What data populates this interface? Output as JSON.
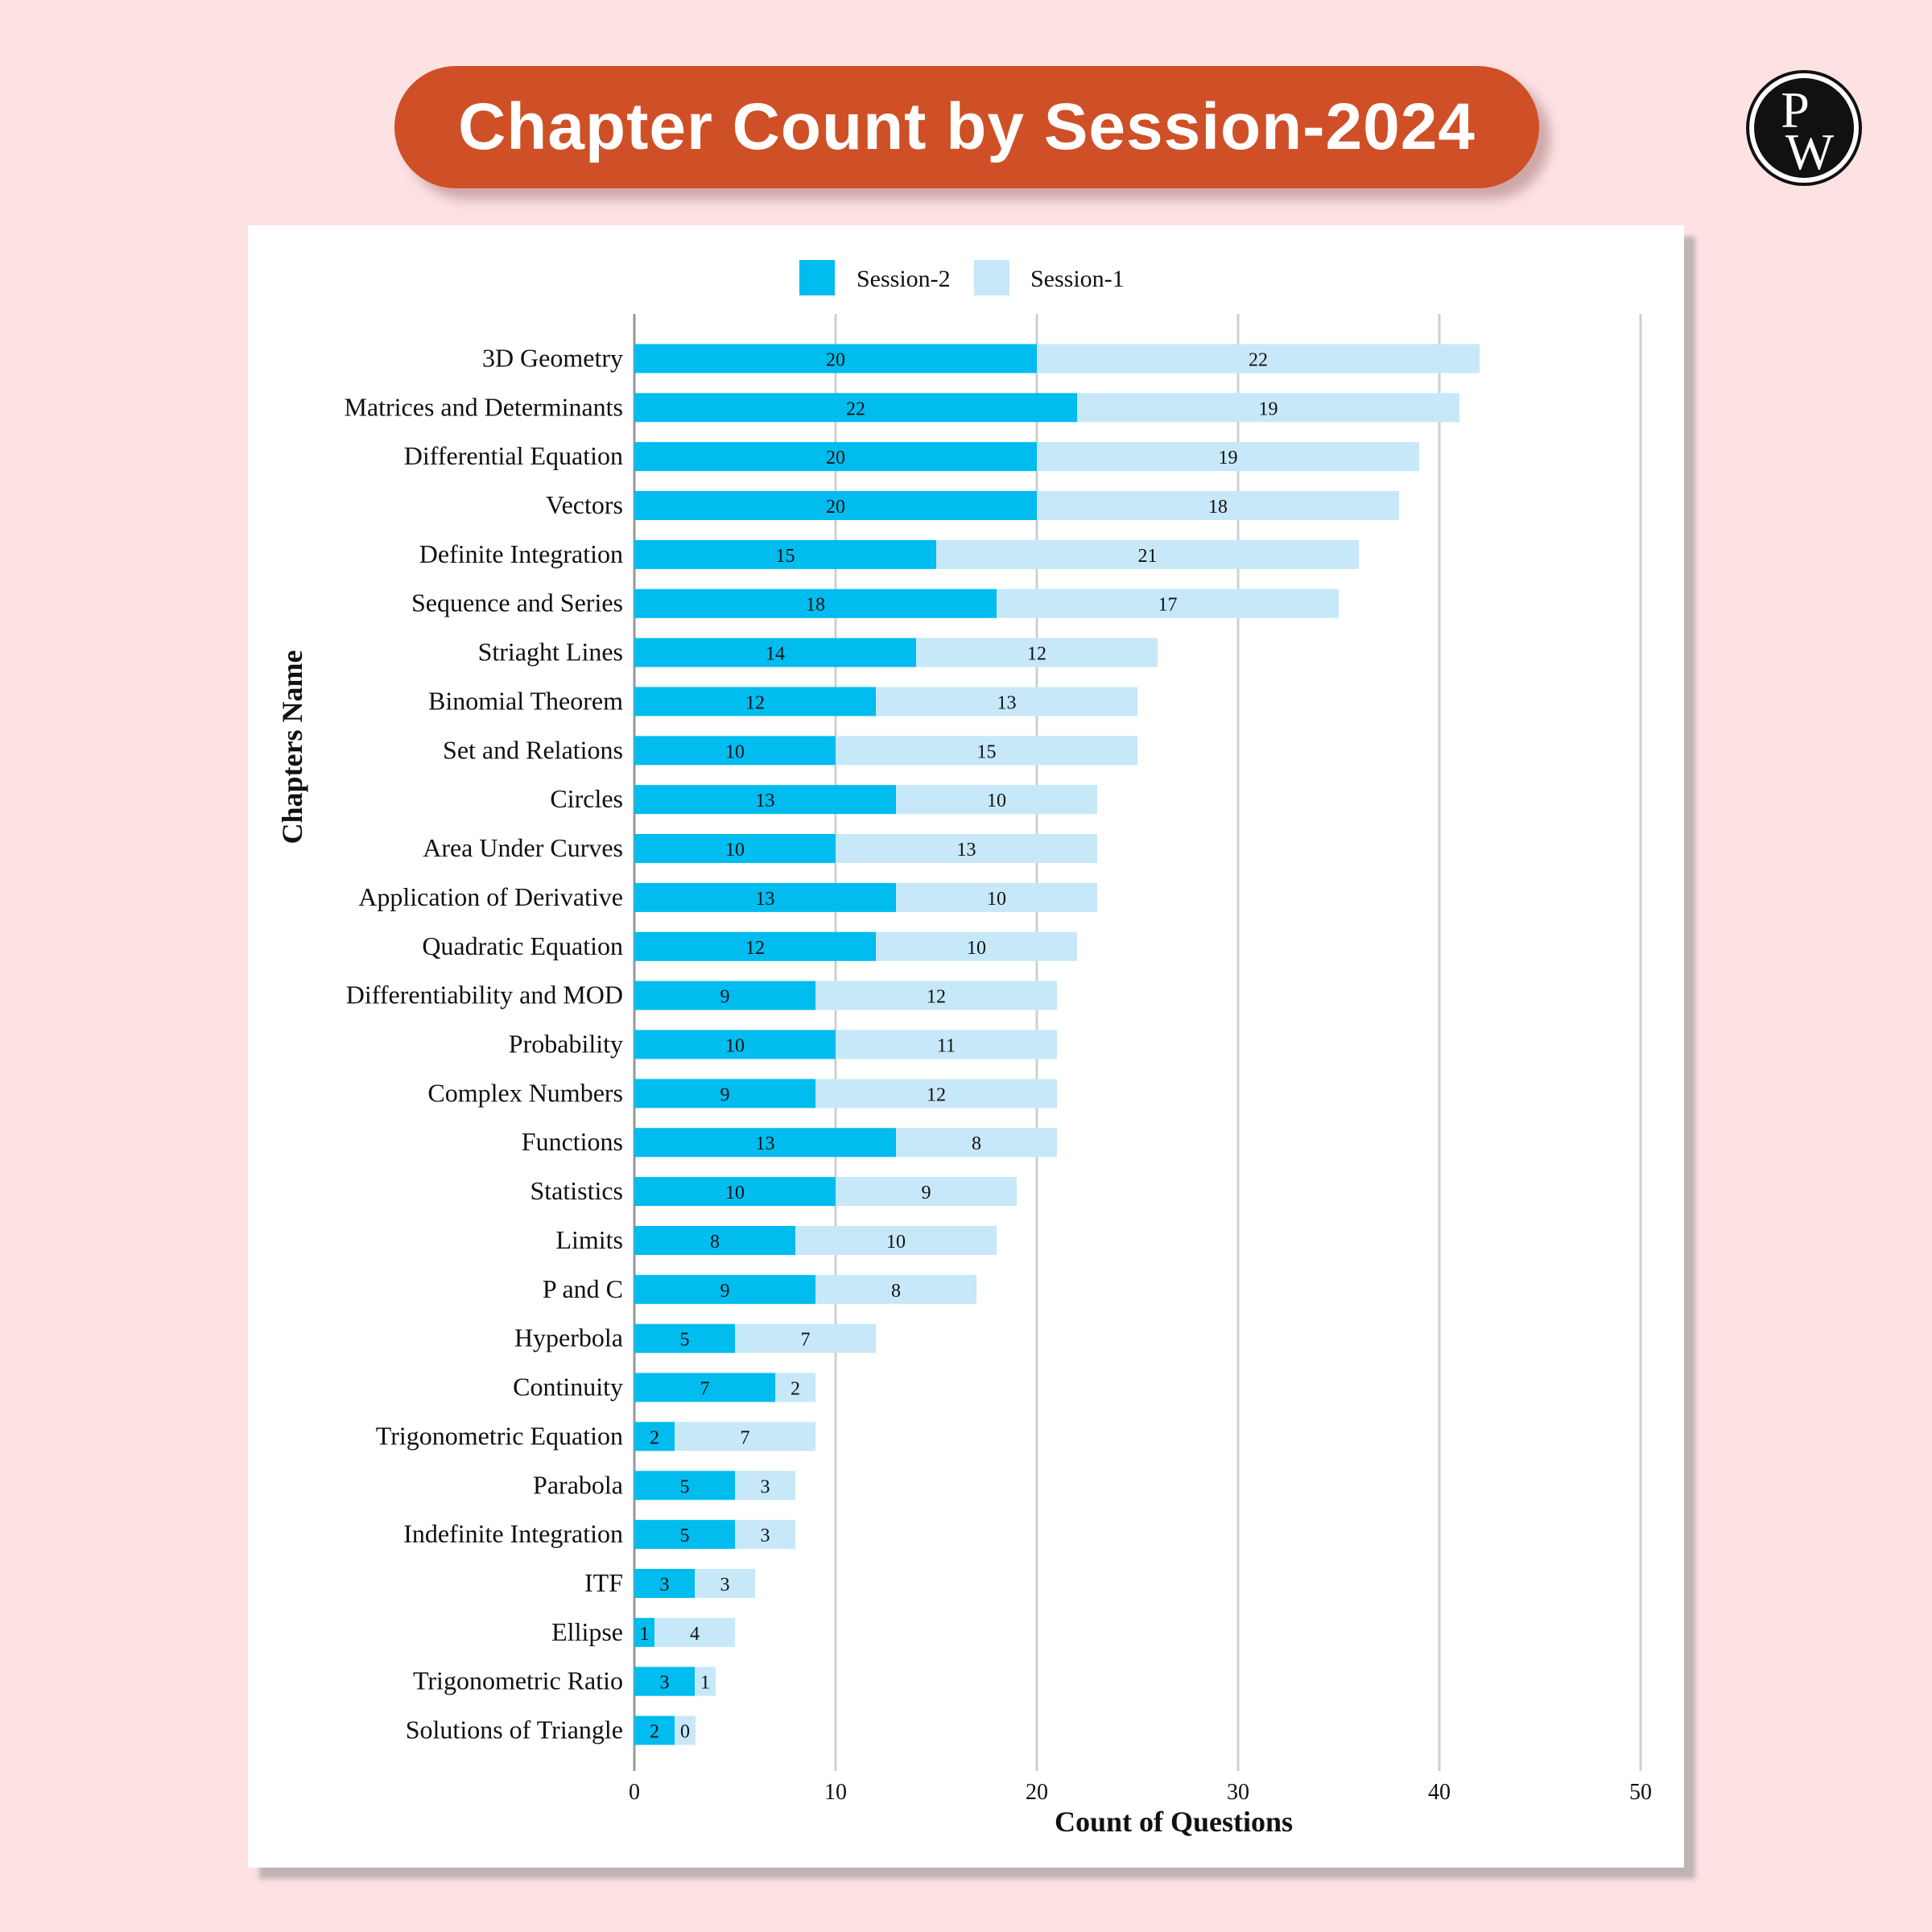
{
  "header": {
    "title": "Chapter Count by Session-2024"
  },
  "logo": {
    "icon": "pw-logo-icon",
    "letters": "PW"
  },
  "colors": {
    "session2": "#00bcef",
    "session1": "#c7e8f8",
    "accent": "#cf5027",
    "background": "#fde2e3"
  },
  "chart_data": {
    "type": "bar",
    "orientation": "horizontal",
    "stacked": true,
    "title": "Chapter Count by Session-2024",
    "xlabel": "Count of Questions",
    "ylabel": "Chapters Name",
    "xlim": [
      0,
      50
    ],
    "xticks": [
      0,
      10,
      20,
      30,
      40,
      50
    ],
    "grid": true,
    "legend_position": "top-center",
    "categories": [
      "3D Geometry",
      "Matrices and Determinants",
      "Differential Equation",
      "Vectors",
      "Definite Integration",
      "Sequence and Series",
      "Striaght Lines",
      "Binomial Theorem",
      "Set and Relations",
      "Circles",
      "Area Under Curves",
      "Application of Derivative",
      "Quadratic Equation",
      "Differentiability and MOD",
      "Probability",
      "Complex Numbers",
      "Functions",
      "Statistics",
      "Limits",
      "P and C",
      "Hyperbola",
      "Continuity",
      "Trigonometric Equation",
      "Parabola",
      "Indefinite Integration",
      "ITF",
      "Ellipse",
      "Trigonometric Ratio",
      "Solutions of Triangle"
    ],
    "series": [
      {
        "name": "Session-2",
        "values": [
          20,
          22,
          20,
          20,
          15,
          18,
          14,
          12,
          10,
          13,
          10,
          13,
          12,
          9,
          10,
          9,
          13,
          10,
          8,
          9,
          5,
          7,
          2,
          5,
          5,
          3,
          1,
          3,
          2
        ]
      },
      {
        "name": "Session-1",
        "values": [
          22,
          19,
          19,
          18,
          21,
          17,
          12,
          13,
          15,
          10,
          13,
          10,
          10,
          12,
          11,
          12,
          8,
          9,
          10,
          8,
          7,
          2,
          7,
          3,
          3,
          3,
          4,
          1,
          0
        ]
      }
    ]
  }
}
